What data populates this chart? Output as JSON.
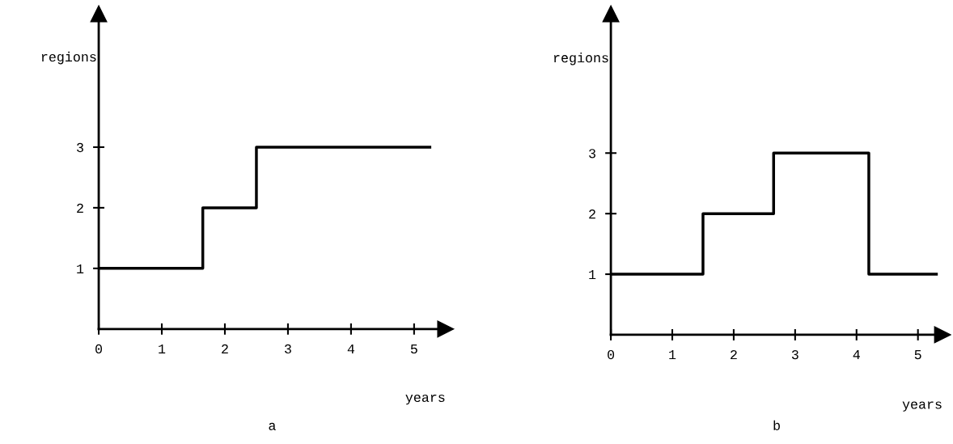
{
  "chart_data": [
    {
      "type": "step",
      "xlabel": "years",
      "ylabel": "regions",
      "annotations": [
        "a"
      ],
      "xlim": [
        0,
        5.5
      ],
      "ylim": [
        0,
        5.2
      ],
      "xticks": [
        0,
        1,
        2,
        3,
        4,
        5
      ],
      "yticks": [
        1,
        2,
        3
      ],
      "grid": false,
      "legend": false,
      "marker": "none",
      "line_style": "solid",
      "series": [
        {
          "color": "#000000",
          "x": [
            0,
            1.65,
            2.5,
            5.25
          ],
          "values": [
            1,
            2,
            3,
            3
          ]
        }
      ]
    },
    {
      "type": "step",
      "xlabel": "years",
      "ylabel": "regions",
      "annotations": [
        "b"
      ],
      "xlim": [
        0,
        5.4
      ],
      "ylim": [
        0,
        5.3
      ],
      "xticks": [
        0,
        1,
        2,
        3,
        4,
        5
      ],
      "yticks": [
        1,
        2,
        3
      ],
      "grid": false,
      "legend": false,
      "marker": "none",
      "line_style": "solid",
      "series": [
        {
          "color": "#000000",
          "x": [
            0,
            1.5,
            2.65,
            4.2,
            5.3
          ],
          "values": [
            1,
            2,
            3,
            1,
            1
          ]
        }
      ]
    }
  ]
}
